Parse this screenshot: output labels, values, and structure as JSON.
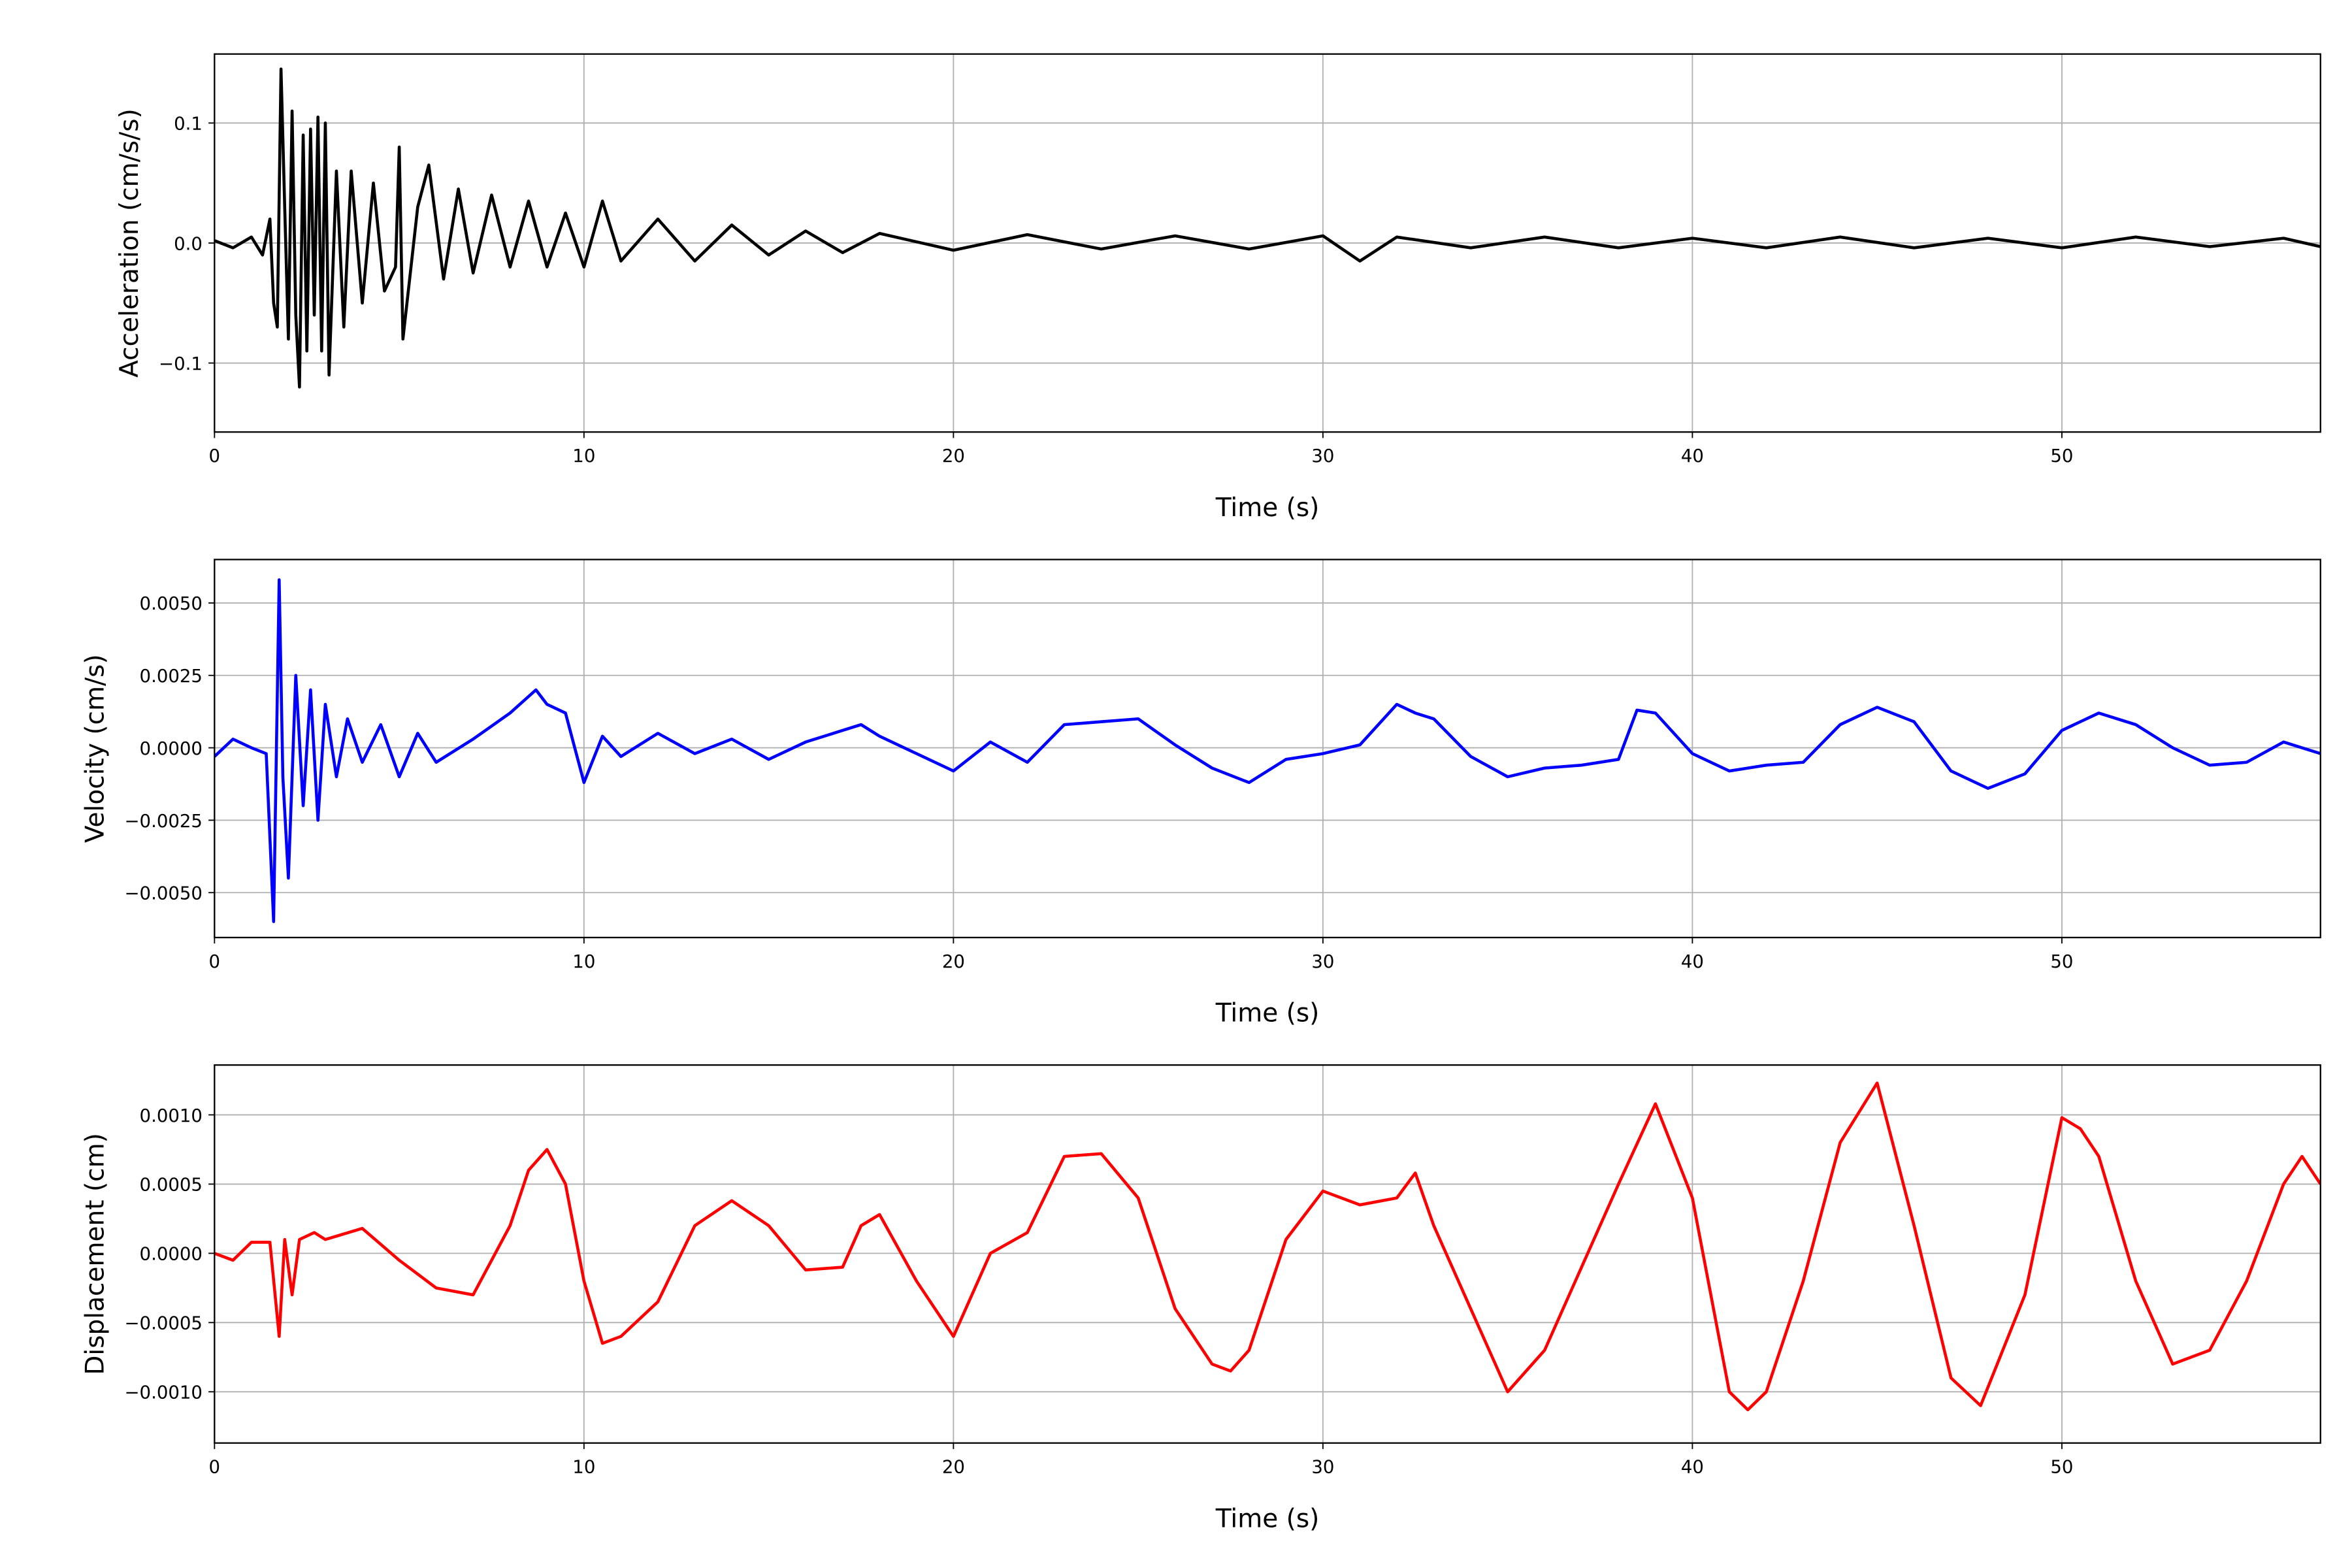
{
  "chart_data": [
    {
      "type": "line",
      "ylabel": "Acceleration (cm/s/s)",
      "xlabel": "Time (s)",
      "grid": true,
      "xlim": [
        0,
        57
      ],
      "xticks": [
        0,
        10,
        20,
        30,
        40,
        50
      ],
      "ylim": [
        -0.1575,
        0.1575
      ],
      "yticks": [
        {
          "value": -0.1,
          "label": "−0.1"
        },
        {
          "value": 0,
          "label": "0.0"
        },
        0.1
      ],
      "x": [
        0,
        0.5,
        1,
        1.3,
        1.5,
        1.6,
        1.7,
        1.8,
        1.9,
        2.0,
        2.1,
        2.2,
        2.3,
        2.4,
        2.5,
        2.6,
        2.7,
        2.8,
        2.9,
        3.0,
        3.1,
        3.3,
        3.5,
        3.7,
        4.0,
        4.3,
        4.6,
        4.9,
        5.0,
        5.1,
        5.5,
        5.8,
        6.2,
        6.6,
        7.0,
        7.5,
        8.0,
        8.5,
        9.0,
        9.5,
        10,
        10.5,
        11,
        12,
        13,
        14,
        15,
        16,
        17,
        18,
        20,
        22,
        24,
        26,
        28,
        30,
        31,
        32,
        34,
        36,
        38,
        40,
        42,
        44,
        46,
        48,
        50,
        52,
        54,
        56,
        57
      ],
      "series": [
        {
          "color": "#000000",
          "values": [
            0.002,
            -0.004,
            0.005,
            -0.01,
            0.02,
            -0.05,
            -0.07,
            0.145,
            0.03,
            -0.08,
            0.11,
            -0.06,
            -0.12,
            0.09,
            -0.09,
            0.095,
            -0.06,
            0.105,
            -0.09,
            0.1,
            -0.11,
            0.06,
            -0.07,
            0.06,
            -0.05,
            0.05,
            -0.04,
            -0.02,
            0.08,
            -0.08,
            0.03,
            0.065,
            -0.03,
            0.045,
            -0.025,
            0.04,
            -0.02,
            0.035,
            -0.02,
            0.025,
            -0.02,
            0.035,
            -0.015,
            0.02,
            -0.015,
            0.015,
            -0.01,
            0.01,
            -0.008,
            0.008,
            -0.006,
            0.007,
            -0.005,
            0.006,
            -0.005,
            0.006,
            -0.015,
            0.005,
            -0.004,
            0.005,
            -0.004,
            0.004,
            -0.004,
            0.005,
            -0.004,
            0.004,
            -0.004,
            0.005,
            -0.003,
            0.004,
            -0.003
          ]
        }
      ]
    },
    {
      "type": "line",
      "ylabel": "Velocity (cm/s)",
      "xlabel": "Time (s)",
      "grid": true,
      "xlim": [
        0,
        57
      ],
      "xticks": [
        0,
        10,
        20,
        30,
        40,
        50
      ],
      "ylim": [
        -0.00655,
        0.0065
      ],
      "yticks": [
        {
          "value": -0.005,
          "label": "−0.0050"
        },
        {
          "value": -0.0025,
          "label": "−0.0025"
        },
        {
          "value": 0,
          "label": "0.0000"
        },
        {
          "value": 0.0025,
          "label": "0.0025"
        },
        {
          "value": 0.005,
          "label": "0.0050"
        }
      ],
      "x": [
        0,
        0.5,
        1,
        1.4,
        1.6,
        1.75,
        1.85,
        2.0,
        2.2,
        2.4,
        2.6,
        2.8,
        3.0,
        3.3,
        3.6,
        4.0,
        4.5,
        5.0,
        5.5,
        6.0,
        7.0,
        8.0,
        8.7,
        9.0,
        9.5,
        10.0,
        10.5,
        11,
        12,
        13,
        14,
        15,
        16,
        17,
        17.5,
        18,
        19,
        20,
        21,
        22,
        23,
        24,
        25,
        26,
        27,
        28,
        29,
        30,
        31,
        32,
        32.5,
        33,
        34,
        35,
        36,
        37,
        38,
        38.5,
        39,
        40,
        41,
        42,
        43,
        44,
        45,
        46,
        47,
        48,
        49,
        50,
        51,
        52,
        53,
        54,
        55,
        56,
        57
      ],
      "series": [
        {
          "color": "#0000ff",
          "values": [
            -0.0003,
            0.0003,
            0,
            -0.0002,
            -0.006,
            0.0058,
            -0.001,
            -0.0045,
            0.0025,
            -0.002,
            0.002,
            -0.0025,
            0.0015,
            -0.001,
            0.001,
            -0.0005,
            0.0008,
            -0.001,
            0.0005,
            -0.0005,
            0.0003,
            0.0012,
            0.002,
            0.0015,
            0.0012,
            -0.0012,
            0.0004,
            -0.0003,
            0.0005,
            -0.0002,
            0.0003,
            -0.0004,
            0.0002,
            0.0006,
            0.0008,
            0.0004,
            -0.0002,
            -0.0008,
            0.0002,
            -0.0005,
            0.0008,
            0.0009,
            0.001,
            0.0001,
            -0.0007,
            -0.0012,
            -0.0004,
            -0.0002,
            0.0001,
            0.0015,
            0.0012,
            0.001,
            -0.0003,
            -0.001,
            -0.0007,
            -0.0006,
            -0.0004,
            0.0013,
            0.0012,
            -0.0002,
            -0.0008,
            -0.0006,
            -0.0005,
            0.0008,
            0.0014,
            0.0009,
            -0.0008,
            -0.0014,
            -0.0009,
            0.0006,
            0.0012,
            0.0008,
            0,
            -0.0006,
            -0.0005,
            0.0002,
            -0.0002
          ]
        }
      ]
    },
    {
      "type": "line",
      "ylabel": "Displacement (cm)",
      "xlabel": "Time (s)",
      "grid": true,
      "xlim": [
        0,
        57
      ],
      "xticks": [
        0,
        10,
        20,
        30,
        40,
        50
      ],
      "ylim": [
        -0.00137,
        0.00136
      ],
      "yticks": [
        {
          "value": -0.001,
          "label": "−0.0010"
        },
        {
          "value": -0.0005,
          "label": "−0.0005"
        },
        {
          "value": 0,
          "label": "0.0000"
        },
        {
          "value": 0.0005,
          "label": "0.0005"
        },
        {
          "value": 0.001,
          "label": "0.0010"
        }
      ],
      "x": [
        0,
        0.5,
        1.0,
        1.5,
        1.75,
        1.9,
        2.1,
        2.3,
        2.7,
        3.0,
        4.0,
        5.0,
        6.0,
        7.0,
        8.0,
        8.5,
        9.0,
        9.5,
        10.0,
        10.5,
        11,
        12,
        13,
        14,
        15,
        16,
        17,
        17.5,
        18,
        19,
        20,
        21,
        22,
        23,
        24,
        25,
        26,
        27,
        27.5,
        28,
        29,
        30,
        31,
        32,
        32.5,
        33,
        34,
        35,
        36,
        37,
        38,
        39,
        40,
        41,
        41.5,
        42,
        43,
        44,
        45,
        46,
        47,
        47.8,
        49,
        50,
        50.5,
        51,
        52,
        53,
        54,
        55,
        56,
        56.5,
        57
      ],
      "series": [
        {
          "color": "#ff0000",
          "values": [
            0,
            -5e-05,
            8e-05,
            8e-05,
            -0.0006,
            0.0001,
            -0.0003,
            0.0001,
            0.00015,
            0.0001,
            0.00018,
            -5e-05,
            -0.00025,
            -0.0003,
            0.0002,
            0.0006,
            0.00075,
            0.0005,
            -0.0002,
            -0.00065,
            -0.0006,
            -0.00035,
            0.0002,
            0.00038,
            0.0002,
            -0.00012,
            -0.0001,
            0.0002,
            0.00028,
            -0.0002,
            -0.0006,
            0.0,
            0.00015,
            0.0007,
            0.00072,
            0.0004,
            -0.0004,
            -0.0008,
            -0.00085,
            -0.0007,
            0.0001,
            0.00045,
            0.00035,
            0.0004,
            0.00058,
            0.0002,
            -0.0004,
            -0.001,
            -0.0007,
            -0.0001,
            0.0005,
            0.00108,
            0.0004,
            -0.001,
            -0.00113,
            -0.001,
            -0.0002,
            0.0008,
            0.00123,
            0.0002,
            -0.0009,
            -0.0011,
            -0.0003,
            0.00098,
            0.0009,
            0.0007,
            -0.0002,
            -0.0008,
            -0.0007,
            -0.0002,
            0.0005,
            0.0007,
            0.0005
          ]
        }
      ]
    }
  ]
}
